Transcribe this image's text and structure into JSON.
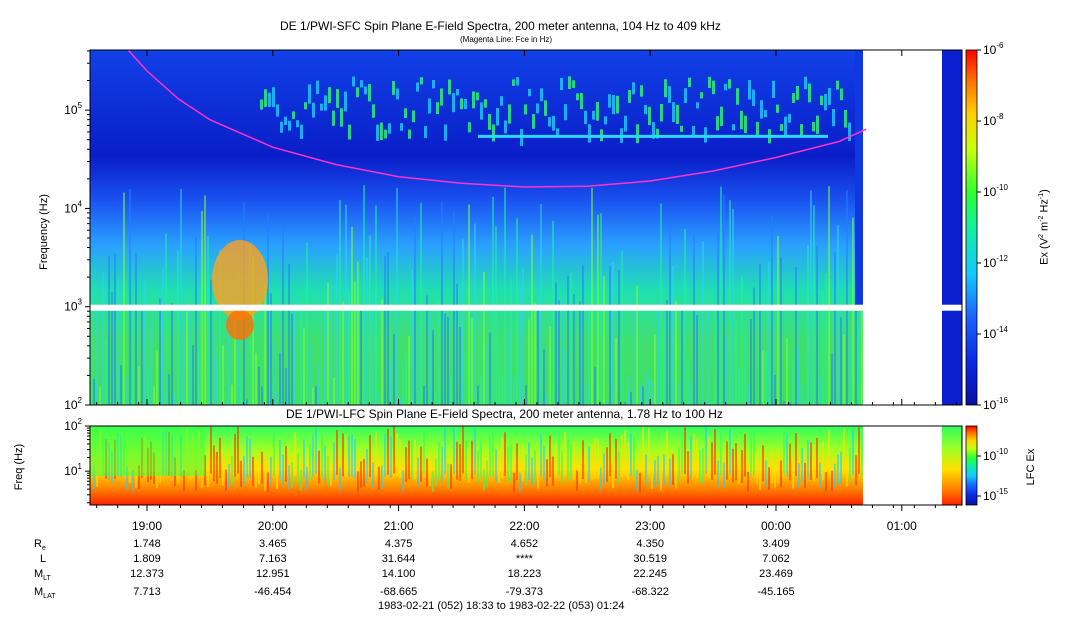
{
  "chart_data": [
    {
      "type": "heatmap",
      "title": "DE 1/PWI-SFC  Spin Plane E-Field Spectra, 200 meter antenna, 104 Hz to 409 kHz",
      "subtitle": "(Magenta Line: Fce in Hz)",
      "ylabel": "Frequency (Hz)",
      "ylim": [
        100,
        409000
      ],
      "y_scale": "log",
      "y_ticks": [
        {
          "value": 100,
          "base": "10",
          "exp": "2"
        },
        {
          "value": 1000,
          "base": "10",
          "exp": "3"
        },
        {
          "value": 10000,
          "base": "10",
          "exp": "4"
        },
        {
          "value": 100000,
          "base": "10",
          "exp": "5"
        }
      ],
      "x_range": [
        "18:33",
        "01:24"
      ],
      "colorbar": {
        "label_prefix": "Ex (V",
        "label_sup1": "2",
        "label_mid": " m",
        "label_sup2": "-2",
        "label_mid2": " Hz",
        "label_sup3": "-1",
        "label_suffix": ")",
        "range": [
          1e-16,
          1e-06
        ],
        "scale": "log",
        "ticks": [
          {
            "value": 1e-06,
            "base": "10",
            "exp": "-6"
          },
          {
            "value": 1e-08,
            "base": "10",
            "exp": "-8"
          },
          {
            "value": 1e-10,
            "base": "10",
            "exp": "-10"
          },
          {
            "value": 1e-12,
            "base": "10",
            "exp": "-12"
          },
          {
            "value": 1e-14,
            "base": "10",
            "exp": "-14"
          },
          {
            "value": 1e-16,
            "base": "10",
            "exp": "-16"
          }
        ]
      },
      "fce_line": {
        "color": "#ff33cc",
        "points": [
          [
            "18:51",
            409000
          ],
          [
            "19:00",
            250000
          ],
          [
            "19:15",
            130000
          ],
          [
            "19:30",
            80000
          ],
          [
            "20:00",
            42000
          ],
          [
            "20:30",
            28000
          ],
          [
            "21:00",
            21000
          ],
          [
            "21:30",
            18000
          ],
          [
            "22:00",
            16500
          ],
          [
            "22:30",
            16800
          ],
          [
            "23:00",
            19000
          ],
          [
            "23:30",
            24000
          ],
          [
            "00:00",
            33000
          ],
          [
            "00:30",
            48000
          ],
          [
            "00:43",
            64000
          ]
        ]
      }
    },
    {
      "type": "heatmap",
      "title": "DE 1/PWI-LFC  Spin Plane E-Field Spectra, 200 meter antenna, 1.78 Hz to 100 Hz",
      "ylabel": "Freq (Hz)",
      "ylim": [
        1.78,
        100
      ],
      "y_scale": "log",
      "y_ticks": [
        {
          "value": 10,
          "base": "10",
          "exp": "1"
        },
        {
          "value": 100,
          "base": "10",
          "exp": "2"
        }
      ],
      "colorbar": {
        "label": "LFC Ex",
        "ticks": [
          {
            "value": 1e-10,
            "base": "10",
            "exp": "-10"
          },
          {
            "value": 1e-15,
            "base": "10",
            "exp": "-15"
          }
        ]
      }
    }
  ],
  "x_axis": {
    "ticks": [
      "19:00",
      "20:00",
      "21:00",
      "22:00",
      "23:00",
      "00:00",
      "01:00"
    ],
    "footer": "1983-02-21 (052) 18:33 to 1983-02-22 (053) 01:24"
  },
  "ephemeris": {
    "rows": [
      {
        "label": "R",
        "sub": "e",
        "values": [
          "1.748",
          "3.465",
          "4.375",
          "4.652",
          "4.350",
          "3.409"
        ]
      },
      {
        "label": "L",
        "sub": "",
        "values": [
          "1.809",
          "7.163",
          "31.644",
          "****",
          "30.519",
          "7.062"
        ]
      },
      {
        "label": "M",
        "sub": "LT",
        "values": [
          "12.373",
          "12.951",
          "14.100",
          "18.223",
          "22.245",
          "23.469"
        ]
      },
      {
        "label": "M",
        "sub": "LAT",
        "values": [
          "7.713",
          "-46.454",
          "-68.665",
          "-79.373",
          "-68.322",
          "-45.165"
        ]
      }
    ]
  }
}
